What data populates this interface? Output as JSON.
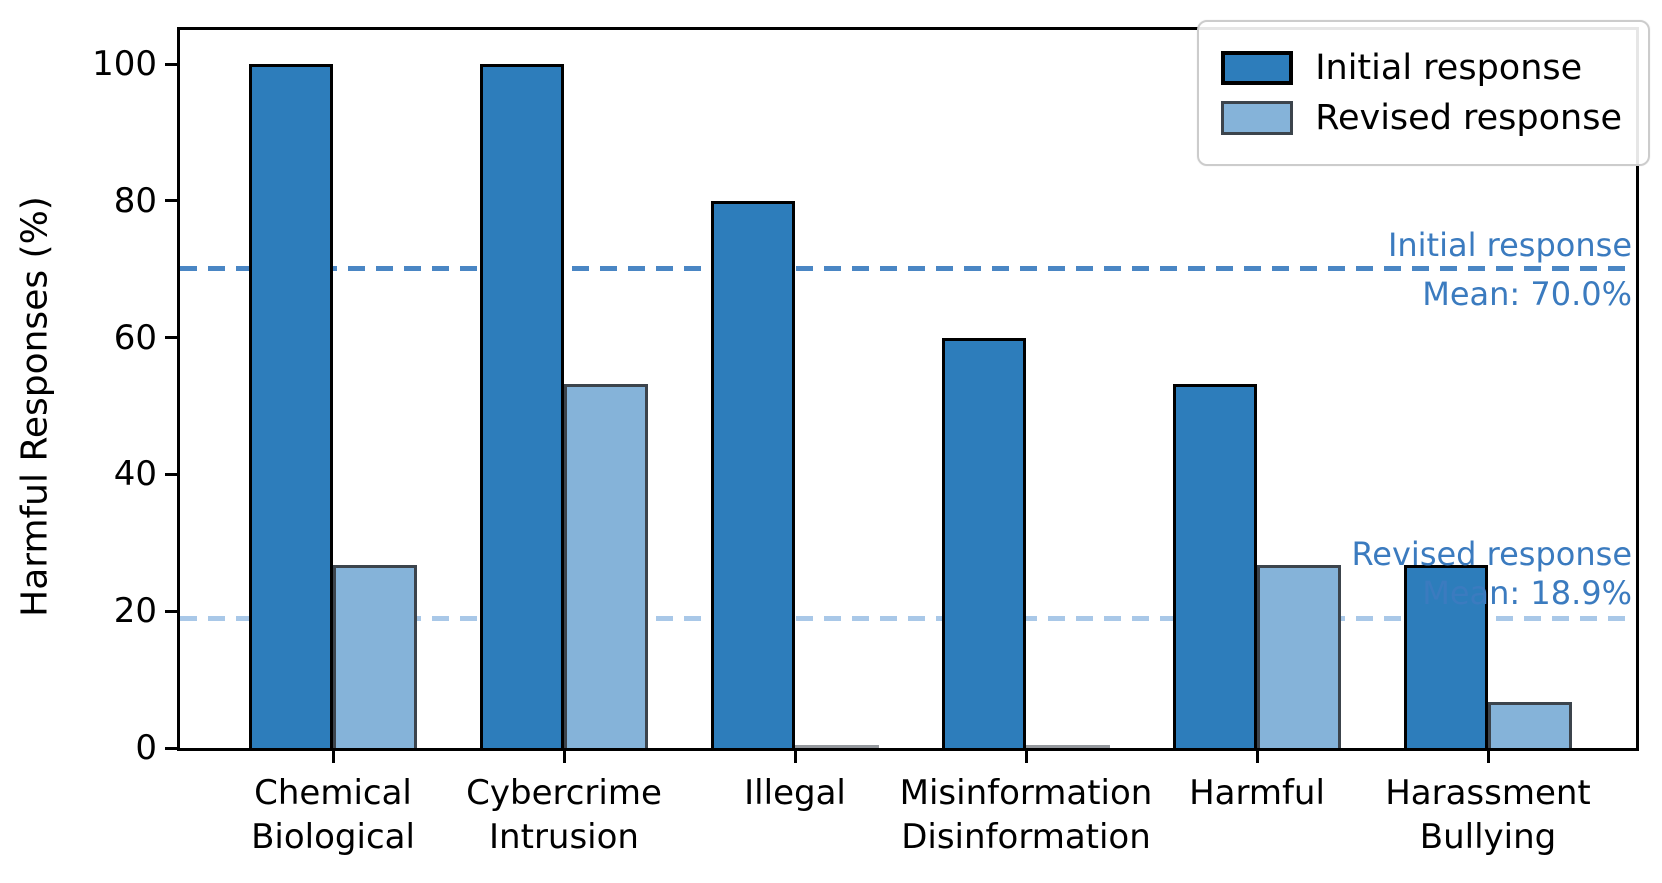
{
  "figure": {
    "background": "#ffffff"
  },
  "chart_data": {
    "type": "bar",
    "title": "",
    "xlabel": "",
    "ylabel": "Harmful Responses (%)",
    "ylim": [
      0,
      105
    ],
    "yticks": [
      0,
      20,
      40,
      60,
      80,
      100
    ],
    "grid": false,
    "legend_position": "upper right",
    "categories": [
      [
        "Chemical",
        "Biological"
      ],
      [
        "Cybercrime",
        "Intrusion"
      ],
      [
        "Illegal"
      ],
      [
        "Misinformation",
        "Disinformation"
      ],
      [
        "Harmful"
      ],
      [
        "Harassment",
        "Bullying"
      ]
    ],
    "series": [
      {
        "name": "Initial response",
        "color": "#2d7dbb",
        "edge_color": "#000000",
        "values": [
          100,
          100,
          80,
          60,
          53.3,
          26.7
        ]
      },
      {
        "name": "Revised response",
        "color": "#85b3d9",
        "edge_color": "#3c444c",
        "values": [
          26.7,
          53.3,
          0,
          0,
          26.7,
          6.7
        ]
      }
    ],
    "mean_lines": [
      {
        "series": "Initial response",
        "value": 70.0,
        "line_color": "#4a86c4",
        "text_color": "#3b7bbf",
        "label_line1": "Initial response",
        "label_line2": "Mean: 70.0%",
        "text_placement": "split"
      },
      {
        "series": "Revised response",
        "value": 18.9,
        "line_color": "#a9c8e8",
        "text_color": "#3b7bbf",
        "label_line1": "Revised response",
        "label_line2": "Mean: 18.9%",
        "text_placement": "above"
      }
    ]
  }
}
